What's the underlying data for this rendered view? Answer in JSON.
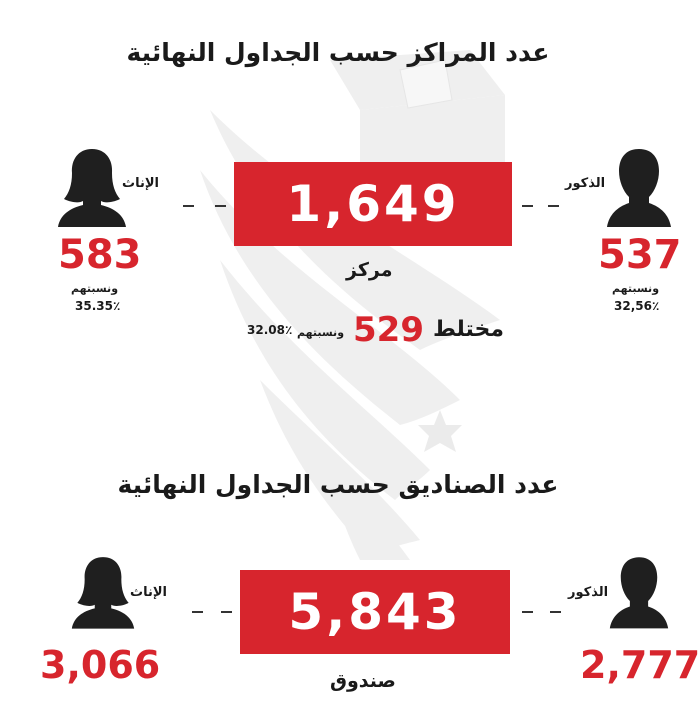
{
  "section_centers": {
    "title": "عدد المراكز حسب الجداول النهائية",
    "total": "1,649",
    "unit": "مركز",
    "female": {
      "label": "الإناث",
      "count": "583",
      "share_label": "ونسبتهم",
      "share": "35.35٪"
    },
    "male": {
      "label": "الذكور",
      "count": "537",
      "share_label": "ونسبتهم",
      "share": "32,56٪"
    },
    "mixed": {
      "label": "مختلط",
      "count": "529",
      "share_label": "ونسبتهم",
      "share": "32.08٪"
    }
  },
  "section_boxes": {
    "title": "عدد الصناديق حسب الجداول النهائية",
    "total": "5,843",
    "unit": "صندوق",
    "female": {
      "label": "الإناث",
      "count": "3,066"
    },
    "male": {
      "label": "الذكور",
      "count": "2,777"
    }
  },
  "colors": {
    "accent_red": "#d7252d",
    "silhouette": "#1f1f1f",
    "watermark": "#efefef"
  },
  "icons": [
    "ballot-box-watermark",
    "flag-star-watermark",
    "female-silhouette-icon",
    "male-silhouette-icon"
  ]
}
